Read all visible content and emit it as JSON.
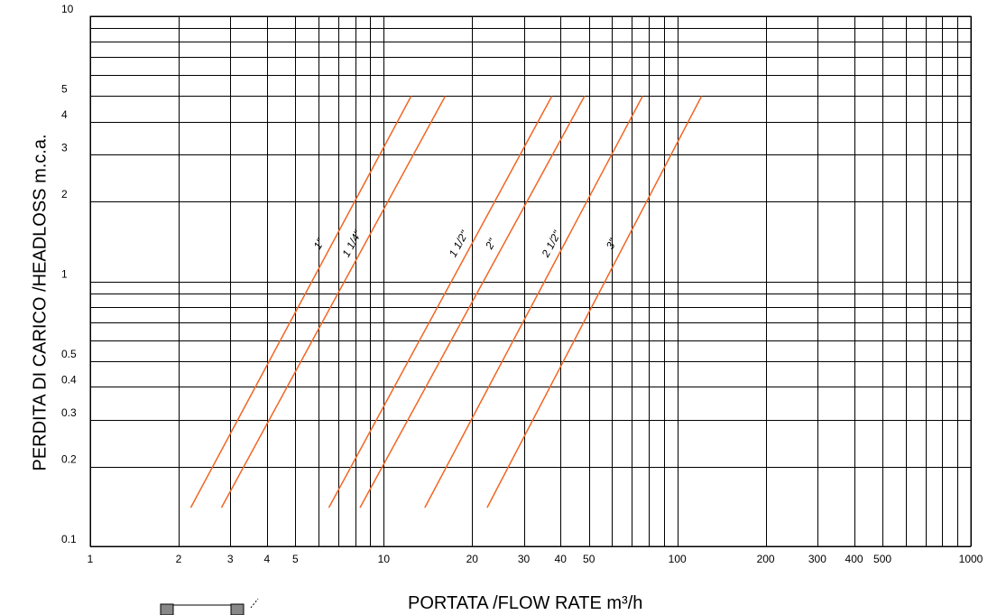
{
  "chart_data": {
    "type": "line",
    "x_scale": "log",
    "y_scale": "log",
    "xlim": [
      1,
      1000
    ],
    "ylim": [
      0.1,
      10
    ],
    "xlabel": "PORTATA /FLOW RATE  m³/h",
    "ylabel": "PERDITA DI CARICO /HEADLOSS m.c.a.",
    "x_grid": [
      1,
      2,
      3,
      4,
      5,
      6,
      7,
      8,
      9,
      10,
      20,
      30,
      40,
      50,
      60,
      70,
      80,
      90,
      100,
      200,
      300,
      400,
      500,
      600,
      700,
      800,
      900,
      1000
    ],
    "y_grid": [
      0.1,
      0.2,
      0.3,
      0.4,
      0.5,
      0.6,
      0.7,
      0.8,
      0.9,
      1,
      2,
      3,
      4,
      5,
      6,
      7,
      8,
      9,
      10
    ],
    "x_ticks": [
      "1",
      "2",
      "3",
      "4",
      "5",
      "10",
      "20",
      "30",
      "40",
      "50",
      "100",
      "200",
      "300",
      "400",
      "500",
      "1000"
    ],
    "y_ticks": [
      "0.1",
      "0.2",
      "0.3",
      "0.4",
      "0.5",
      "1",
      "2",
      "3",
      "4",
      "5",
      "10"
    ],
    "grid": true,
    "line_color": "#f26522",
    "series": [
      {
        "name": "1\"",
        "points": [
          [
            2.2,
            0.14
          ],
          [
            12.4,
            5
          ]
        ]
      },
      {
        "name": "1 1/4\"",
        "points": [
          [
            2.8,
            0.14
          ],
          [
            16.2,
            5
          ]
        ]
      },
      {
        "name": "1 1/2\"",
        "points": [
          [
            6.5,
            0.14
          ],
          [
            37.4,
            5
          ]
        ]
      },
      {
        "name": "2\"",
        "points": [
          [
            8.3,
            0.14
          ],
          [
            48.3,
            5
          ]
        ]
      },
      {
        "name": "2 1/2\"",
        "points": [
          [
            13.8,
            0.14
          ],
          [
            76.2,
            5
          ]
        ]
      },
      {
        "name": "3\"",
        "points": [
          [
            22.5,
            0.14
          ],
          [
            121,
            5
          ]
        ]
      }
    ]
  }
}
